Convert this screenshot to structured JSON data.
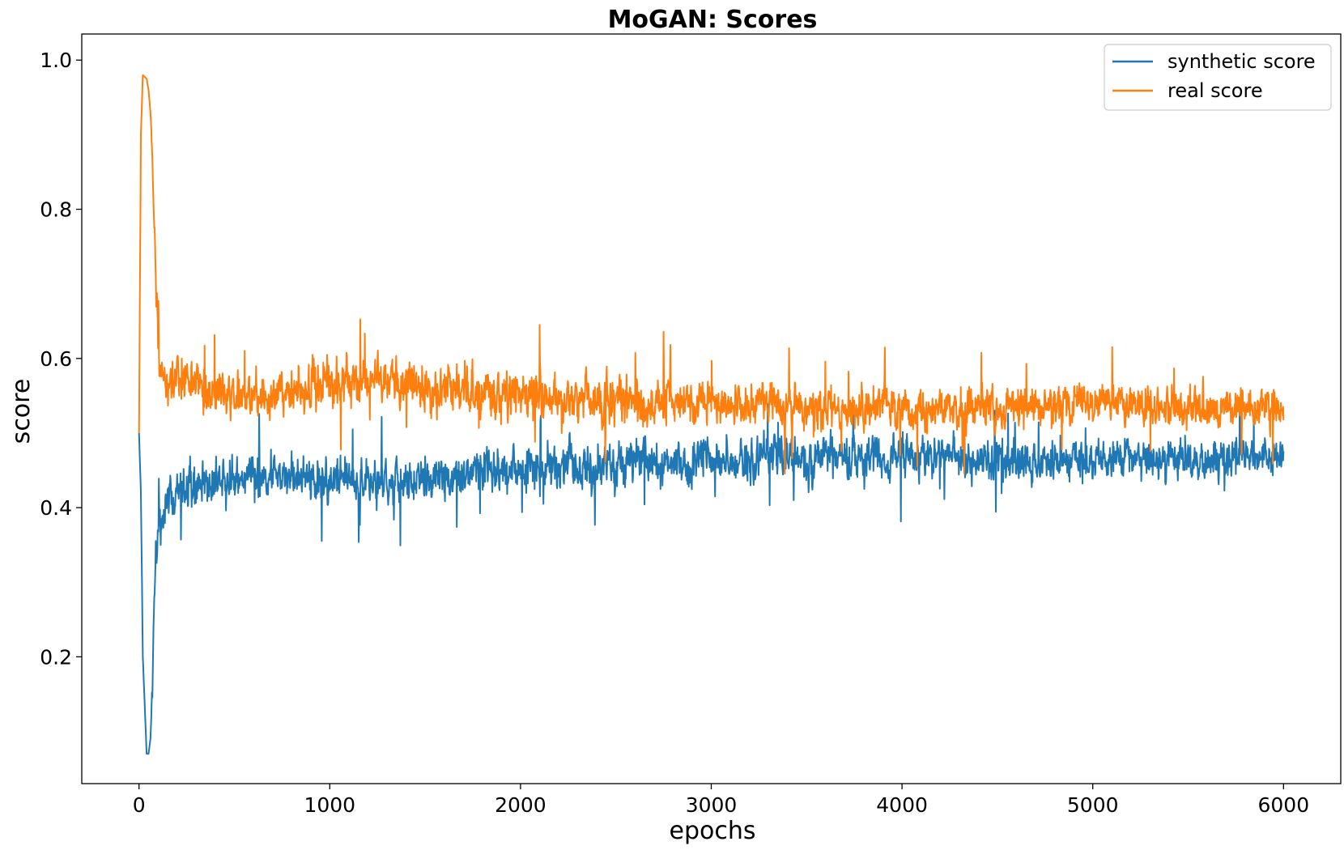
{
  "chart_data": {
    "type": "line",
    "title": "MoGAN: Scores",
    "xlabel": "epochs",
    "ylabel": "score",
    "xlim": [
      -300,
      6300
    ],
    "ylim": [
      0.03,
      1.035
    ],
    "x_ticks": [
      0,
      1000,
      2000,
      3000,
      4000,
      5000,
      6000
    ],
    "x_tick_labels": [
      "0",
      "1000",
      "2000",
      "3000",
      "4000",
      "5000",
      "6000"
    ],
    "y_ticks": [
      0.2,
      0.4,
      0.6,
      0.8,
      1.0
    ],
    "y_tick_labels": [
      "0.2",
      "0.4",
      "0.6",
      "0.8",
      "1.0"
    ],
    "grid": false,
    "legend_position": "top-right",
    "series": [
      {
        "name": "synthetic score",
        "color": "#1f77b4",
        "x": [
          0,
          10,
          20,
          40,
          50,
          60,
          70,
          80,
          90,
          100,
          120,
          150,
          200,
          300,
          400,
          500,
          700,
          1000,
          1300,
          1500,
          2000,
          2500,
          3000,
          3500,
          4000,
          4500,
          5000,
          5500,
          6000
        ],
        "values": [
          0.5,
          0.42,
          0.2,
          0.07,
          0.07,
          0.09,
          0.15,
          0.27,
          0.35,
          0.37,
          0.39,
          0.41,
          0.42,
          0.43,
          0.44,
          0.445,
          0.445,
          0.44,
          0.43,
          0.44,
          0.455,
          0.46,
          0.465,
          0.465,
          0.47,
          0.465,
          0.465,
          0.465,
          0.465
        ],
        "noise": [
          0.0,
          0.0,
          0.0,
          0.0,
          0.0,
          0.0,
          0.01,
          0.02,
          0.03,
          0.03,
          0.03,
          0.03,
          0.03,
          0.03,
          0.03,
          0.03,
          0.03,
          0.03,
          0.03,
          0.03,
          0.03,
          0.03,
          0.028,
          0.028,
          0.028,
          0.028,
          0.026,
          0.026,
          0.026
        ]
      },
      {
        "name": "real score",
        "color": "#ff7f0e",
        "x": [
          0,
          10,
          20,
          40,
          50,
          60,
          70,
          80,
          90,
          100,
          120,
          150,
          200,
          300,
          400,
          500,
          700,
          1000,
          1300,
          1500,
          2000,
          2500,
          3000,
          3500,
          4000,
          4500,
          5000,
          5500,
          6000
        ],
        "values": [
          0.5,
          0.9,
          0.98,
          0.975,
          0.96,
          0.93,
          0.87,
          0.78,
          0.68,
          0.62,
          0.57,
          0.56,
          0.575,
          0.57,
          0.55,
          0.545,
          0.55,
          0.565,
          0.575,
          0.56,
          0.55,
          0.545,
          0.54,
          0.535,
          0.53,
          0.535,
          0.54,
          0.535,
          0.535
        ],
        "noise": [
          0.0,
          0.0,
          0.0,
          0.0,
          0.0,
          0.0,
          0.01,
          0.02,
          0.03,
          0.03,
          0.03,
          0.03,
          0.03,
          0.03,
          0.03,
          0.03,
          0.03,
          0.03,
          0.03,
          0.03,
          0.03,
          0.03,
          0.028,
          0.028,
          0.028,
          0.028,
          0.026,
          0.026,
          0.026
        ]
      }
    ]
  }
}
